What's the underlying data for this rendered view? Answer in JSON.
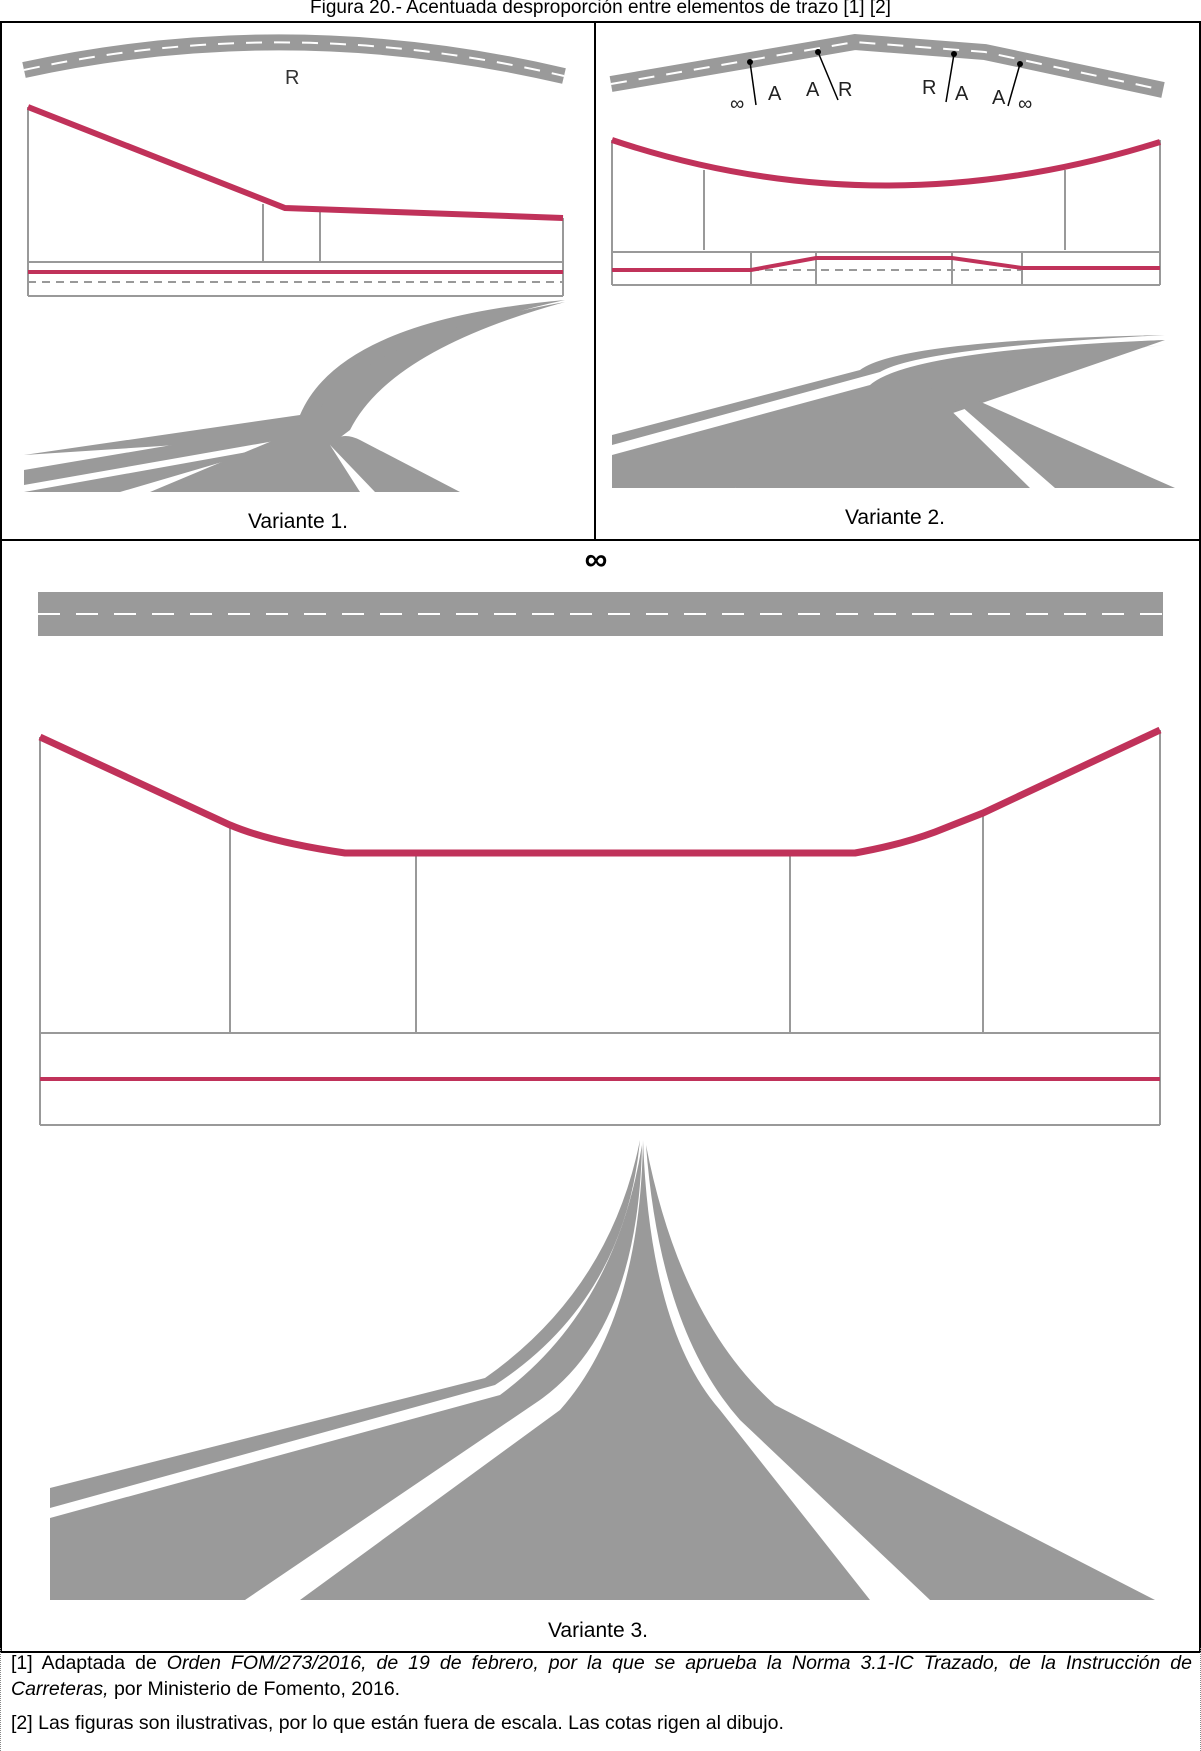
{
  "caption": "Figura 20.- Acentuada desproporción entre elementos de trazo [1] [2]",
  "variants": [
    {
      "label": "Variante 1.",
      "plan_labels": [
        "R"
      ]
    },
    {
      "label": "Variante 2.",
      "plan_labels": [
        "∞",
        "A",
        "A",
        "R",
        "R",
        "A",
        "A",
        "∞"
      ]
    },
    {
      "label": "Variante 3.",
      "plan_labels": [
        "∞"
      ]
    }
  ],
  "notes": [
    {
      "prefix": "[1] Adaptada de ",
      "emph": "Orden FOM/273/2016, de 19 de febrero, por la que se aprueba la Norma 3.1-IC Trazado, de la Instrucción de Carreteras,",
      "suffix": " por Ministerio de Fomento, 2016."
    },
    {
      "prefix": "[2] Las figuras son ilustrativas, por lo que están fuera de escala. Las cotas rigen al dibujo.",
      "emph": "",
      "suffix": ""
    }
  ],
  "colors": {
    "road": "#9a9a9a",
    "curvature": "#c0325a",
    "grid": "#999999",
    "border": "#000000"
  }
}
